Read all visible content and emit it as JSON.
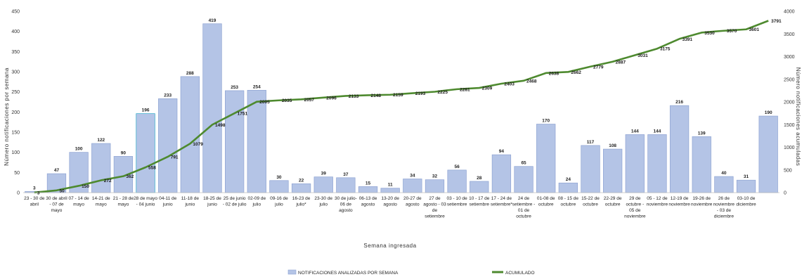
{
  "chart_data": {
    "type": "bar",
    "categories": [
      [
        "23 - 30 de",
        "abril"
      ],
      [
        "30 de abril",
        "- 07 de",
        "mayo"
      ],
      [
        "07 - 14 de",
        "mayo"
      ],
      [
        "14-21 de",
        "mayo"
      ],
      [
        "21 - 28 de",
        "mayo"
      ],
      [
        "28 de mayo",
        "- 04 junio"
      ],
      [
        "04-11 de",
        "junio"
      ],
      [
        "11-18 de",
        "junio"
      ],
      [
        "18-25 de",
        "junio"
      ],
      [
        "25 de junio",
        "- 02 de julio"
      ],
      [
        "02-09 de",
        "julio"
      ],
      [
        "09-16 de",
        "julio"
      ],
      [
        "16-23 de",
        "julio*"
      ],
      [
        "23-30 de",
        "julio"
      ],
      [
        "30 de julio-",
        "06 de",
        "agosto"
      ],
      [
        "06-13 de",
        "agosto"
      ],
      [
        "13-20 de",
        "agosto"
      ],
      [
        "20-27 de",
        "agosto"
      ],
      [
        "27 de",
        "agosto - 03",
        "de",
        "setiembre"
      ],
      [
        "03 - 10 de",
        "setiembre"
      ],
      [
        "10 - 17 de",
        "setiembre"
      ],
      [
        "17 - 24 de",
        "setiembre*"
      ],
      [
        "24 de",
        "setiembre -",
        "01 de",
        "octubre"
      ],
      [
        "01-08 de",
        "octubre"
      ],
      [
        "08 - 15 de",
        "octubre"
      ],
      [
        "15-22 de",
        "octubre"
      ],
      [
        "22-29 de",
        "octubre"
      ],
      [
        "29 de",
        "octubre -",
        "05 de",
        "noviembre"
      ],
      [
        "05 - 12 de",
        "noviembre"
      ],
      [
        "12-19 de",
        "noviembre"
      ],
      [
        "19-26 de",
        "noviembre"
      ],
      [
        "26 de",
        "noviembre",
        "- 03 de",
        "diciembre"
      ],
      [
        "03-10 de",
        "diciembre"
      ],
      [
        "",
        ""
      ]
    ],
    "series": [
      {
        "name": "NOTIFICACIONES ANALIZADAS POR SEMANA",
        "type": "bar",
        "color": "#b4c4e6",
        "values": [
          3,
          47,
          100,
          122,
          90,
          196,
          233,
          288,
          419,
          253,
          254,
          30,
          22,
          39,
          37,
          15,
          11,
          34,
          32,
          56,
          28,
          94,
          65,
          170,
          24,
          117,
          108,
          144,
          144,
          216,
          139,
          40,
          31,
          190
        ]
      },
      {
        "name": "ACUMULADO",
        "type": "line",
        "color": "#4e8a2f",
        "values": [
          3,
          50,
          150,
          272,
          362,
          558,
          791,
          1079,
          1498,
          1751,
          2005,
          2035,
          2057,
          2096,
          2133,
          2148,
          2159,
          2193,
          2225,
          2281,
          2309,
          2403,
          2468,
          2638,
          2662,
          2779,
          2887,
          3031,
          3175,
          3391,
          3530,
          3570,
          3601,
          3791
        ]
      }
    ],
    "xlabel": "Semana ingresada",
    "ylabel": "Número notificaciones por semana",
    "y2label": "Número notificaciones acumuladas",
    "ylim": [
      0,
      450
    ],
    "y2lim": [
      0,
      4000
    ],
    "yticks": [
      0,
      50,
      100,
      150,
      200,
      250,
      300,
      350,
      400,
      450
    ],
    "y2ticks": [
      0,
      500,
      1000,
      1500,
      2000,
      2500,
      3000,
      3500,
      4000
    ],
    "grid": false,
    "legend_position": "bottom"
  }
}
